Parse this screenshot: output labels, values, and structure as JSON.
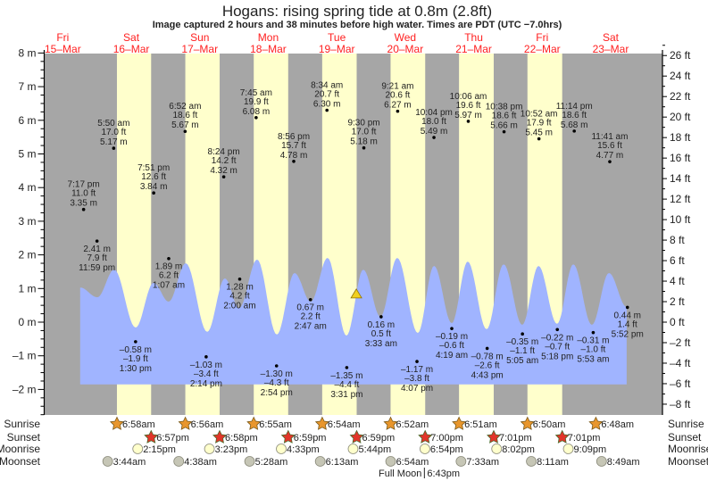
{
  "header": {
    "title": "Hogans: rising  spring tide at 0.8m (2.8ft)",
    "subtitle": "Image captured 2 hours and 38 minutes before high water. Times are PDT (UTC −7.0hrs)"
  },
  "days": [
    {
      "dow": "Fri",
      "date": "15–Mar"
    },
    {
      "dow": "Sat",
      "date": "16–Mar"
    },
    {
      "dow": "Sun",
      "date": "17–Mar"
    },
    {
      "dow": "Mon",
      "date": "18–Mar"
    },
    {
      "dow": "Tue",
      "date": "19–Mar"
    },
    {
      "dow": "Wed",
      "date": "20–Mar"
    },
    {
      "dow": "Thu",
      "date": "21–Mar"
    },
    {
      "dow": "Fri",
      "date": "22–Mar"
    },
    {
      "dow": "Sat",
      "date": "23–Mar"
    }
  ],
  "row_labels": {
    "sunrise": "Sunrise",
    "sunset": "Sunset",
    "moonrise": "Moonrise",
    "moonset": "Moonset"
  },
  "moon_phase": {
    "label": "Full Moon",
    "time": "6:43pm",
    "day": 5
  },
  "colors": {
    "night": "#a6a6a6",
    "day": "#ffffcc",
    "water": "#a0b4ff",
    "day_header": "#ff2020",
    "sunrise": "#e8962c",
    "sunset": "#e2352a",
    "moonrise": "#ffffcc",
    "moonset": "#c6c6b6",
    "now_marker": "#f0d020"
  },
  "chart_data": {
    "type": "area",
    "title": "Hogans: rising  spring tide at 0.8m (2.8ft)",
    "xlabel": "",
    "ylabel": "m",
    "ylabel_right": "ft",
    "ylim_m": [
      -2.75,
      8
    ],
    "yticks_m": [
      -2,
      -1,
      0,
      1,
      2,
      3,
      4,
      5,
      6,
      7,
      8
    ],
    "yticks_ft": [
      -8,
      -6,
      -4,
      -2,
      0,
      2,
      4,
      6,
      8,
      10,
      12,
      14,
      16,
      18,
      20,
      22,
      24,
      26
    ],
    "x_units": "hours since Fri 15-Mar 00:00",
    "xlim_hours": [
      5.5,
      222.5
    ],
    "curve_baseline_m": -1.85,
    "curve": [
      [
        18.1,
        1.03
      ],
      [
        24.1,
        0.74
      ],
      [
        30.0,
        1.56
      ],
      [
        37.5,
        -0.16
      ],
      [
        43.8,
        1.17
      ],
      [
        49.1,
        0.61
      ],
      [
        55.1,
        1.75
      ],
      [
        62.6,
        -0.29
      ],
      [
        68.8,
        1.3
      ],
      [
        73.8,
        0.42
      ],
      [
        80.1,
        1.86
      ],
      [
        87.0,
        -0.37
      ],
      [
        93.2,
        1.46
      ],
      [
        98.9,
        0.61
      ],
      [
        104.8,
        1.91
      ],
      [
        111.4,
        -0.4
      ],
      [
        117.3,
        1.56
      ],
      [
        123.3,
        0.16
      ],
      [
        129.2,
        1.91
      ],
      [
        136.4,
        -0.32
      ],
      [
        142.1,
        1.67
      ],
      [
        148.3,
        -0.03
      ],
      [
        153.9,
        1.8
      ],
      [
        160.5,
        -0.21
      ],
      [
        166.5,
        1.72
      ],
      [
        173.0,
        -0.08
      ],
      [
        178.7,
        1.67
      ],
      [
        185.2,
        -0.05
      ],
      [
        190.9,
        1.72
      ],
      [
        197.4,
        -0.08
      ],
      [
        203.4,
        1.46
      ],
      [
        209.6,
        0.45
      ]
    ],
    "now_marker": {
      "day": 4,
      "time": "6:52pm",
      "m": 0.8
    },
    "tides": [
      {
        "day": 0,
        "type": "high",
        "time": "7:17 pm",
        "ft": "11.0 ft",
        "m": "3.35 m",
        "value": 3.35
      },
      {
        "day": 0,
        "type": "low",
        "time": "11:59 pm",
        "ft": "7.9 ft",
        "m": "2.41 m",
        "value": 2.41
      },
      {
        "day": 1,
        "type": "high",
        "time": "5:50 am",
        "ft": "17.0 ft",
        "m": "5.17 m",
        "value": 5.17
      },
      {
        "day": 1,
        "type": "low",
        "time": "1:30 pm",
        "ft": "–1.9 ft",
        "m": "–0.58 m",
        "value": -0.58
      },
      {
        "day": 1,
        "type": "high",
        "time": "7:51 pm",
        "ft": "12.6 ft",
        "m": "3.84 m",
        "value": 3.84
      },
      {
        "day": 2,
        "type": "low",
        "time": "1:07 am",
        "ft": "6.2 ft",
        "m": "1.89 m",
        "value": 1.89
      },
      {
        "day": 2,
        "type": "high",
        "time": "6:52 am",
        "ft": "18.6 ft",
        "m": "5.67 m",
        "value": 5.67
      },
      {
        "day": 2,
        "type": "low",
        "time": "2:14 pm",
        "ft": "–3.4 ft",
        "m": "–1.03 m",
        "value": -1.03
      },
      {
        "day": 2,
        "type": "high",
        "time": "8:24 pm",
        "ft": "14.2 ft",
        "m": "4.32 m",
        "value": 4.32
      },
      {
        "day": 3,
        "type": "low",
        "time": "2:00 am",
        "ft": "4.2 ft",
        "m": "1.28 m",
        "value": 1.28
      },
      {
        "day": 3,
        "type": "high",
        "time": "7:45 am",
        "ft": "19.9 ft",
        "m": "6.08 m",
        "value": 6.08
      },
      {
        "day": 3,
        "type": "low",
        "time": "2:54 pm",
        "ft": "–4.3 ft",
        "m": "–1.30 m",
        "value": -1.3
      },
      {
        "day": 3,
        "type": "high",
        "time": "8:56 pm",
        "ft": "15.7 ft",
        "m": "4.78 m",
        "value": 4.78
      },
      {
        "day": 4,
        "type": "low",
        "time": "2:47 am",
        "ft": "2.2 ft",
        "m": "0.67 m",
        "value": 0.67
      },
      {
        "day": 4,
        "type": "high",
        "time": "8:34 am",
        "ft": "20.7 ft",
        "m": "6.30 m",
        "value": 6.3
      },
      {
        "day": 4,
        "type": "low",
        "time": "3:31 pm",
        "ft": "–4.4 ft",
        "m": "–1.35 m",
        "value": -1.35
      },
      {
        "day": 4,
        "type": "high",
        "time": "9:30 pm",
        "ft": "17.0 ft",
        "m": "5.18 m",
        "value": 5.18
      },
      {
        "day": 5,
        "type": "low",
        "time": "3:33 am",
        "ft": "0.5 ft",
        "m": "0.16 m",
        "value": 0.16
      },
      {
        "day": 5,
        "type": "high",
        "time": "9:21 am",
        "ft": "20.6 ft",
        "m": "6.27 m",
        "value": 6.27
      },
      {
        "day": 5,
        "type": "low",
        "time": "4:07 pm",
        "ft": "–3.8 ft",
        "m": "–1.17 m",
        "value": -1.17
      },
      {
        "day": 5,
        "type": "high",
        "time": "10:04 pm",
        "ft": "18.0 ft",
        "m": "5.49 m",
        "value": 5.49
      },
      {
        "day": 6,
        "type": "low",
        "time": "4:19 am",
        "ft": "–0.6 ft",
        "m": "–0.19 m",
        "value": -0.19
      },
      {
        "day": 6,
        "type": "high",
        "time": "10:06 am",
        "ft": "19.6 ft",
        "m": "5.97 m",
        "value": 5.97
      },
      {
        "day": 6,
        "type": "low",
        "time": "4:43 pm",
        "ft": "–2.6 ft",
        "m": "–0.78 m",
        "value": -0.78
      },
      {
        "day": 6,
        "type": "high",
        "time": "10:38 pm",
        "ft": "18.6 ft",
        "m": "5.66 m",
        "value": 5.66
      },
      {
        "day": 7,
        "type": "low",
        "time": "5:05 am",
        "ft": "–1.1 ft",
        "m": "–0.35 m",
        "value": -0.35
      },
      {
        "day": 7,
        "type": "high",
        "time": "10:52 am",
        "ft": "17.9 ft",
        "m": "5.45 m",
        "value": 5.45
      },
      {
        "day": 7,
        "type": "low",
        "time": "5:18 pm",
        "ft": "–0.7 ft",
        "m": "–0.22 m",
        "value": -0.22
      },
      {
        "day": 7,
        "type": "high",
        "time": "11:14 pm",
        "ft": "18.6 ft",
        "m": "5.68 m",
        "value": 5.68
      },
      {
        "day": 8,
        "type": "low",
        "time": "5:53 am",
        "ft": "–1.0 ft",
        "m": "–0.31 m",
        "value": -0.31
      },
      {
        "day": 8,
        "type": "high",
        "time": "11:41 am",
        "ft": "15.6 ft",
        "m": "4.77 m",
        "value": 4.77
      },
      {
        "day": 8,
        "type": "low",
        "time": "5:52 pm",
        "ft": "1.4 ft",
        "m": "0.44 m",
        "value": 0.44
      }
    ]
  },
  "sun_moon": {
    "sunrise": [
      {
        "day": 1,
        "time": "6:58am"
      },
      {
        "day": 2,
        "time": "6:56am"
      },
      {
        "day": 3,
        "time": "6:55am"
      },
      {
        "day": 4,
        "time": "6:54am"
      },
      {
        "day": 5,
        "time": "6:52am"
      },
      {
        "day": 6,
        "time": "6:51am"
      },
      {
        "day": 7,
        "time": "6:50am"
      },
      {
        "day": 8,
        "time": "6:48am"
      }
    ],
    "sunset": [
      {
        "day": 1,
        "time": "6:57pm"
      },
      {
        "day": 2,
        "time": "6:58pm"
      },
      {
        "day": 3,
        "time": "6:59pm"
      },
      {
        "day": 4,
        "time": "6:59pm"
      },
      {
        "day": 5,
        "time": "7:00pm"
      },
      {
        "day": 6,
        "time": "7:01pm"
      },
      {
        "day": 7,
        "time": "7:01pm"
      }
    ],
    "moonrise": [
      {
        "day": 1,
        "time": "2:15pm"
      },
      {
        "day": 2,
        "time": "3:23pm"
      },
      {
        "day": 3,
        "time": "4:33pm"
      },
      {
        "day": 4,
        "time": "5:44pm"
      },
      {
        "day": 5,
        "time": "6:54pm"
      },
      {
        "day": 6,
        "time": "8:02pm"
      },
      {
        "day": 7,
        "time": "9:09pm"
      }
    ],
    "moonset": [
      {
        "day": 1,
        "time": "3:44am"
      },
      {
        "day": 2,
        "time": "4:38am"
      },
      {
        "day": 3,
        "time": "5:28am"
      },
      {
        "day": 4,
        "time": "6:13am"
      },
      {
        "day": 5,
        "time": "6:54am"
      },
      {
        "day": 6,
        "time": "7:33am"
      },
      {
        "day": 7,
        "time": "8:11am"
      },
      {
        "day": 8,
        "time": "8:49am"
      }
    ]
  }
}
